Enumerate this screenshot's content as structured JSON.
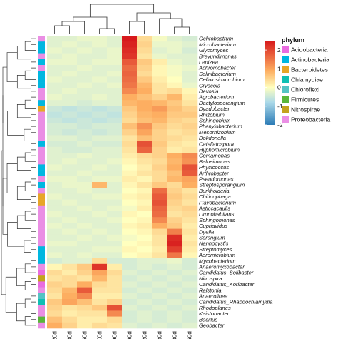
{
  "chart_data": {
    "type": "heatmap",
    "columns": [
      "CK120d",
      "CK30d",
      "CK60d",
      "CK0d",
      "CK90d",
      "TR90d",
      "TR120d",
      "TR0d",
      "TR30d",
      "TR60d"
    ],
    "rows": [
      "Ochrobactrum",
      "Microbacterium",
      "Glycomyces",
      "Brevundimonas",
      "Lentzea",
      "Achromobacter",
      "Salinibacterium",
      "Cellulosimicrobium",
      "Cryocola",
      "Devosia",
      "Agrobacterium",
      "Dactylosporangium",
      "Dyadobacter",
      "Rhizobium",
      "Sphingobium",
      "Phenylobacterium",
      "Mesorhizobium",
      "Dokdonella",
      "Catellatospora",
      "Hyphomicrobium",
      "Comamonas",
      "Balneimonas",
      "Phycicoccus",
      "Arthrobacter",
      "Pseudomonas",
      "Streptosporangium",
      "Burkholderia",
      "Chitinophaga",
      "Flavobacterium",
      "Asticcacaulis",
      "Limnohabitans",
      "Sphingomonas",
      "Cupriavidus",
      "Dyella",
      "Sorangium",
      "Nannocystis",
      "Streptomyces",
      "Aeromicrobium",
      "Mycobacterium",
      "Anaeromyxobacter",
      "Candidatus_Solibacter",
      "Nitrospira",
      "Candidatus_Koribacter",
      "Ralstonia",
      "Anaerolinea",
      "Candidatus_Rhabdochlamydia",
      "Rhodoplanes",
      "Kaistobacter",
      "Bacillus",
      "Geobacter"
    ],
    "values": [
      [
        -0.3,
        -0.3,
        -0.2,
        -0.2,
        -0.3,
        2.5,
        0.4,
        -0.1,
        -0.3,
        -0.4
      ],
      [
        -0.3,
        -0.2,
        -0.3,
        -0.2,
        -0.3,
        2.4,
        0.5,
        -0.2,
        -0.2,
        -0.3
      ],
      [
        -0.2,
        -0.3,
        -0.2,
        -0.3,
        -0.2,
        2.3,
        0.4,
        -0.3,
        -0.2,
        -0.4
      ],
      [
        -0.3,
        -0.2,
        -0.3,
        -0.3,
        -0.2,
        2.2,
        0.3,
        -0.2,
        -0.3,
        -0.3
      ],
      [
        -0.2,
        -0.2,
        -0.3,
        -0.2,
        -0.2,
        1.8,
        0.6,
        0.2,
        -0.2,
        -0.3
      ],
      [
        -0.3,
        -0.3,
        -0.2,
        -0.3,
        -0.3,
        1.6,
        0.5,
        0.1,
        -0.1,
        -0.2
      ],
      [
        -0.3,
        -0.2,
        -0.3,
        -0.3,
        -0.2,
        1.7,
        0.4,
        0.1,
        -0.1,
        -0.3
      ],
      [
        -0.2,
        -0.3,
        -0.3,
        -0.2,
        -0.3,
        1.6,
        0.6,
        0.2,
        0.0,
        -0.3
      ],
      [
        -0.3,
        -0.3,
        -0.2,
        -0.3,
        -0.2,
        1.5,
        0.8,
        0.3,
        0.1,
        -0.2
      ],
      [
        -0.3,
        -0.2,
        -0.3,
        -0.3,
        -0.3,
        1.3,
        0.9,
        0.3,
        0.4,
        0.1
      ],
      [
        -0.2,
        -0.3,
        -0.3,
        -0.2,
        -0.3,
        0.9,
        0.7,
        0.5,
        0.8,
        0.2
      ],
      [
        -0.3,
        -0.3,
        -0.4,
        -0.3,
        -0.3,
        0.8,
        0.9,
        0.8,
        0.6,
        0.3
      ],
      [
        -0.5,
        -0.6,
        -0.5,
        -0.6,
        -0.5,
        0.6,
        0.9,
        1.1,
        0.7,
        0.5
      ],
      [
        -0.6,
        -0.5,
        -0.6,
        -0.5,
        -0.6,
        0.5,
        0.8,
        0.9,
        0.6,
        0.6
      ],
      [
        -0.5,
        -0.6,
        -0.5,
        -0.6,
        -0.5,
        0.4,
        0.7,
        0.8,
        0.5,
        0.4
      ],
      [
        -0.4,
        -0.4,
        -0.5,
        -0.4,
        -0.4,
        0.7,
        1.2,
        0.6,
        0.4,
        0.5
      ],
      [
        -0.4,
        -0.5,
        -0.4,
        -0.5,
        -0.4,
        0.5,
        1.0,
        0.5,
        0.3,
        0.4
      ],
      [
        -0.3,
        -0.3,
        -0.4,
        -0.3,
        -0.3,
        0.3,
        0.7,
        0.5,
        0.4,
        0.3
      ],
      [
        -0.4,
        -0.4,
        -0.3,
        -0.4,
        -0.4,
        0.4,
        1.9,
        0.6,
        0.3,
        0.2
      ],
      [
        -0.3,
        -0.4,
        -0.4,
        -0.3,
        -0.3,
        0.3,
        1.7,
        0.5,
        0.2,
        0.3
      ],
      [
        -0.3,
        -0.3,
        -0.2,
        -0.3,
        -0.3,
        0.2,
        0.4,
        0.5,
        0.9,
        1.3
      ],
      [
        -0.3,
        -0.2,
        -0.3,
        -0.3,
        -0.2,
        0.1,
        0.3,
        0.4,
        0.8,
        1.2
      ],
      [
        -0.2,
        -0.3,
        -0.3,
        -0.2,
        -0.3,
        0.0,
        0.2,
        0.5,
        0.9,
        1.9
      ],
      [
        -0.3,
        -0.3,
        -0.2,
        -0.3,
        -0.3,
        0.1,
        0.3,
        0.4,
        0.7,
        1.8
      ],
      [
        -0.2,
        -0.2,
        -0.3,
        -0.2,
        -0.2,
        0.2,
        0.1,
        0.4,
        0.8,
        1.0
      ],
      [
        -0.3,
        -0.2,
        -0.2,
        0.8,
        -0.3,
        0.1,
        0.3,
        0.6,
        0.4,
        0.9
      ],
      [
        -0.3,
        -0.3,
        -0.2,
        -0.3,
        -0.3,
        0.0,
        0.1,
        1.6,
        0.5,
        0.3
      ],
      [
        -0.2,
        -0.3,
        -0.3,
        -0.2,
        -0.2,
        0.1,
        0.2,
        1.8,
        0.6,
        0.4
      ],
      [
        -0.3,
        -0.2,
        -0.3,
        -0.3,
        -0.3,
        0.0,
        0.1,
        1.9,
        0.5,
        0.3
      ],
      [
        -0.3,
        -0.3,
        -0.2,
        -0.3,
        -0.2,
        -0.1,
        0.2,
        1.7,
        0.4,
        0.5
      ],
      [
        -0.2,
        -0.3,
        -0.3,
        -0.2,
        -0.3,
        0.1,
        0.0,
        1.6,
        0.3,
        0.4
      ],
      [
        -0.3,
        -0.2,
        -0.3,
        -0.3,
        -0.2,
        0.0,
        0.1,
        1.3,
        0.5,
        0.3
      ],
      [
        -0.2,
        -0.3,
        -0.2,
        -0.3,
        -0.3,
        0.1,
        0.2,
        0.9,
        0.6,
        0.2
      ],
      [
        -0.3,
        -0.2,
        -0.3,
        -0.2,
        -0.3,
        0.0,
        0.1,
        0.4,
        1.4,
        0.3
      ],
      [
        -0.3,
        -0.3,
        -0.2,
        -0.3,
        -0.2,
        -0.1,
        0.0,
        0.3,
        2.3,
        0.2
      ],
      [
        -0.2,
        -0.2,
        -0.3,
        -0.3,
        -0.3,
        0.0,
        0.1,
        0.3,
        2.4,
        0.3
      ],
      [
        -0.3,
        -0.3,
        -0.3,
        -0.2,
        -0.2,
        0.1,
        0.0,
        0.2,
        2.1,
        0.2
      ],
      [
        -0.2,
        -0.3,
        -0.2,
        -0.3,
        -0.3,
        0.0,
        0.1,
        0.3,
        1.5,
        0.1
      ],
      [
        -0.4,
        -0.3,
        -0.3,
        0.4,
        -0.4,
        -0.4,
        -0.3,
        -0.3,
        -0.2,
        -0.4
      ],
      [
        0.1,
        0.3,
        0.6,
        2.2,
        0.2,
        -0.4,
        -0.3,
        -0.4,
        -0.3,
        -0.4
      ],
      [
        0.4,
        0.2,
        0.5,
        1.0,
        0.4,
        -0.3,
        -0.4,
        -0.3,
        -0.4,
        -0.3
      ],
      [
        0.3,
        0.4,
        0.3,
        0.8,
        0.3,
        -0.4,
        -0.3,
        -0.4,
        -0.3,
        -0.4
      ],
      [
        0.5,
        0.4,
        0.9,
        0.4,
        0.3,
        -0.3,
        -0.4,
        -0.3,
        -0.4,
        -0.3
      ],
      [
        0.4,
        0.8,
        1.8,
        0.3,
        0.3,
        -0.4,
        -0.3,
        -0.4,
        -0.3,
        -0.4
      ],
      [
        0.3,
        0.9,
        1.3,
        0.2,
        0.2,
        -0.3,
        -0.4,
        -0.3,
        -0.4,
        -0.3
      ],
      [
        0.6,
        1.0,
        0.7,
        0.3,
        0.5,
        -0.4,
        -0.3,
        -0.4,
        -0.3,
        -0.4
      ],
      [
        0.5,
        0.3,
        0.4,
        0.6,
        1.9,
        -0.3,
        -0.4,
        -0.3,
        -0.4,
        -0.3
      ],
      [
        0.4,
        0.2,
        0.3,
        0.3,
        1.3,
        -0.4,
        -0.3,
        -0.4,
        -0.3,
        -0.4
      ],
      [
        0.7,
        0.4,
        0.2,
        0.2,
        0.4,
        -0.4,
        -0.3,
        -0.4,
        -0.3,
        -0.4
      ],
      [
        0.9,
        0.5,
        0.2,
        0.4,
        0.3,
        -0.3,
        -0.4,
        -0.3,
        -0.4,
        -0.3
      ]
    ],
    "row_phylum": [
      "Proteobacteria",
      "Actinobacteria",
      "Actinobacteria",
      "Proteobacteria",
      "Actinobacteria",
      "Proteobacteria",
      "Actinobacteria",
      "Actinobacteria",
      "Actinobacteria",
      "Proteobacteria",
      "Proteobacteria",
      "Actinobacteria",
      "Bacteroidetes",
      "Proteobacteria",
      "Proteobacteria",
      "Proteobacteria",
      "Proteobacteria",
      "Proteobacteria",
      "Actinobacteria",
      "Proteobacteria",
      "Proteobacteria",
      "Proteobacteria",
      "Actinobacteria",
      "Actinobacteria",
      "Proteobacteria",
      "Actinobacteria",
      "Proteobacteria",
      "Bacteroidetes",
      "Bacteroidetes",
      "Proteobacteria",
      "Proteobacteria",
      "Proteobacteria",
      "Proteobacteria",
      "Proteobacteria",
      "Proteobacteria",
      "Proteobacteria",
      "Actinobacteria",
      "Actinobacteria",
      "Actinobacteria",
      "Proteobacteria",
      "Acidobacteria",
      "Nitrospirae",
      "Acidobacteria",
      "Proteobacteria",
      "Chloroflexi",
      "Chlamydiae",
      "Proteobacteria",
      "Proteobacteria",
      "Firmicutes",
      "Proteobacteria"
    ],
    "color_scale": {
      "min": -2,
      "max": 2.5,
      "ticks": [
        "2",
        "1",
        "0",
        "-1",
        "-2"
      ],
      "stops": [
        {
          "v": -2.0,
          "c": "#2c7bb6"
        },
        {
          "v": -0.8,
          "c": "#abd9e9"
        },
        {
          "v": 0.0,
          "c": "#ffffbf"
        },
        {
          "v": 0.9,
          "c": "#fdae61"
        },
        {
          "v": 2.5,
          "c": "#d7191c"
        }
      ]
    },
    "legend": {
      "title": "phylum",
      "placement": "right",
      "items": [
        {
          "label": "Acidobacteria",
          "color": "#ea6ce0"
        },
        {
          "label": "Actinobacteria",
          "color": "#00b7e0"
        },
        {
          "label": "Bacteroidetes",
          "color": "#e7a628"
        },
        {
          "label": "Chlamydiae",
          "color": "#10bfb3"
        },
        {
          "label": "Chloroflexi",
          "color": "#54c3c4"
        },
        {
          "label": "Firmicutes",
          "color": "#59b63a"
        },
        {
          "label": "Nitrospirae",
          "color": "#c3a21c"
        },
        {
          "label": "Proteobacteria",
          "color": "#ea8ee4"
        }
      ]
    },
    "grid": false
  }
}
